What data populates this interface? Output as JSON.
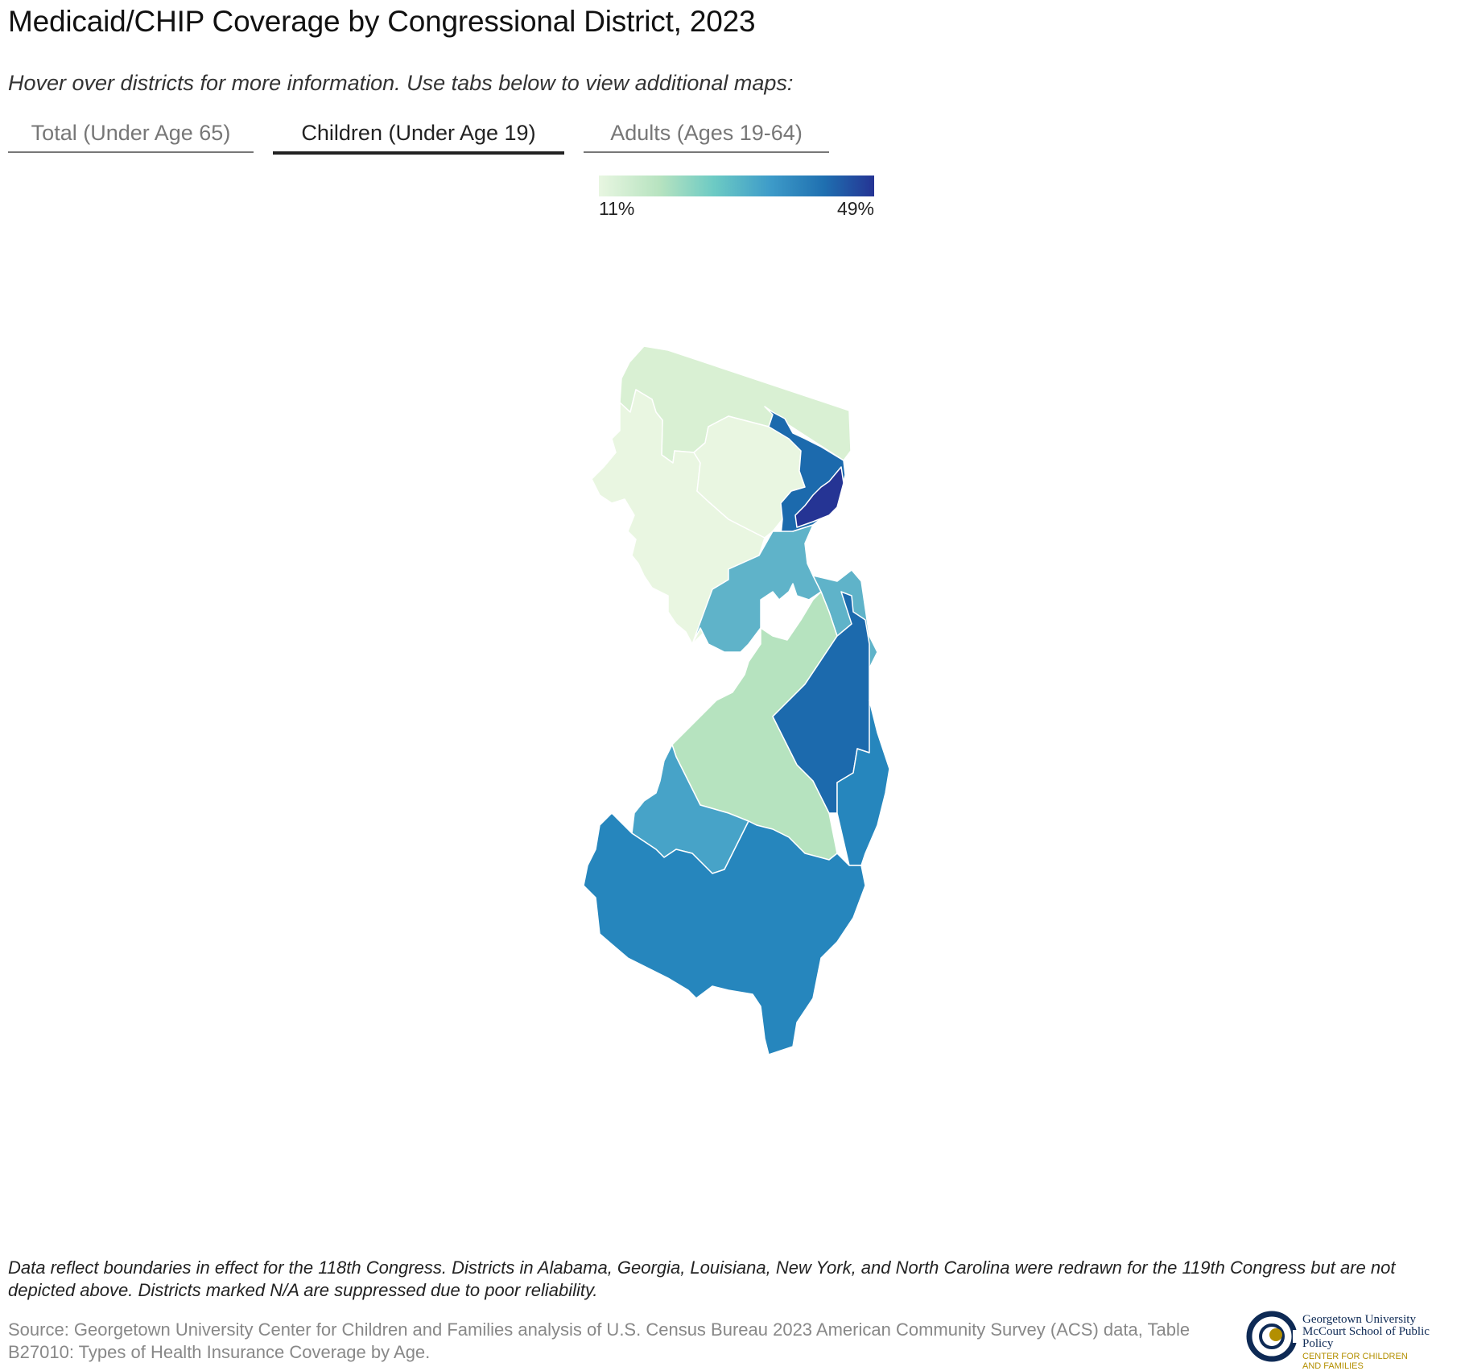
{
  "header": {
    "title": "Medicaid/CHIP Coverage by Congressional District, 2023",
    "subtitle": "Hover over districts for more information. Use tabs below to view additional maps:"
  },
  "tabs": [
    {
      "label": "Total (Under Age 65)",
      "active": false
    },
    {
      "label": "Children (Under Age 19)",
      "active": true
    },
    {
      "label": "Adults (Ages 19-64)",
      "active": false
    }
  ],
  "legend": {
    "min_label": "11%",
    "max_label": "49%",
    "colors": [
      "#e8f6e1",
      "#b7e3c0",
      "#6ccac4",
      "#3e9cc9",
      "#1f6fb0",
      "#253494"
    ]
  },
  "map": {
    "district_colors": {
      "northwest": "#d9f0d3",
      "west": "#e9f6e1",
      "north_central": "#e9f6e1",
      "hudson_a": "#1c6aad",
      "hudson_b": "#253494",
      "central": "#5fb3c9",
      "shore_north": "#5fb3c9",
      "monmouth": "#1c6aad",
      "middle": "#b6e3bf",
      "camden": "#47a3c8",
      "south": "#2686bd",
      "ocean": "#2686bd"
    },
    "border_color": "#ffffff"
  },
  "footer": {
    "note": "Data reflect boundaries in effect for the 118th Congress. Districts in Alabama, Georgia, Louisiana, New York, and North Carolina were redrawn for the 119th Congress but are not depicted above. Districts marked N/A are suppressed due to poor reliability.",
    "source": "Source: Georgetown University Center for Children and Families analysis of U.S. Census Bureau 2023 American Community Survey (ACS) data, Table B27010: Types of Health Insurance Coverage by Age."
  },
  "logo": {
    "line1": "Georgetown University",
    "line2": "McCourt School of Public Policy",
    "line3": "CENTER FOR CHILDREN",
    "line4": "AND FAMILIES",
    "navy": "#0e2a55",
    "gold": "#b38f00"
  }
}
